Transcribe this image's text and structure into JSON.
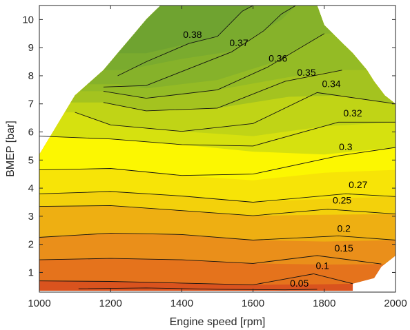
{
  "chart_data": {
    "type": "contour",
    "xlabel": "Engine speed [rpm]",
    "ylabel": "BMEP [bar]",
    "xlim": [
      1000,
      2000
    ],
    "ylim": [
      0.3,
      10.5
    ],
    "xticks": [
      1000,
      1200,
      1400,
      1600,
      1800,
      2000
    ],
    "yticks": [
      1,
      2,
      3,
      4,
      5,
      6,
      7,
      8,
      9,
      10
    ],
    "grid": false,
    "legend": "none",
    "region": [
      [
        1000,
        5.2
      ],
      [
        1000,
        0.35
      ],
      [
        1880,
        0.35
      ],
      [
        1880,
        0.6
      ],
      [
        1940,
        0.8
      ],
      [
        1960,
        1.2
      ],
      [
        2000,
        1.6
      ],
      [
        2000,
        7.0
      ],
      [
        1970,
        7.3
      ],
      [
        1940,
        7.8
      ],
      [
        1920,
        8.2
      ],
      [
        1880,
        8.8
      ],
      [
        1840,
        9.3
      ],
      [
        1800,
        9.8
      ],
      [
        1780,
        10.5
      ],
      [
        1340,
        10.5
      ],
      [
        1300,
        10.0
      ],
      [
        1260,
        9.4
      ],
      [
        1220,
        8.8
      ],
      [
        1180,
        8.2
      ],
      [
        1100,
        7.3
      ],
      [
        1000,
        5.2
      ]
    ],
    "bands": [
      {
        "color": "#d9531e",
        "lower": [
          [
            1000,
            0.35
          ],
          [
            1880,
            0.35
          ]
        ]
      },
      {
        "color": "#e5731c",
        "lower": [
          [
            1000,
            0.7
          ],
          [
            1200,
            0.68
          ],
          [
            1400,
            0.62
          ],
          [
            1600,
            0.56
          ],
          [
            1800,
            0.58
          ],
          [
            1880,
            0.6
          ]
        ]
      },
      {
        "color": "#ea8f1a",
        "lower": [
          [
            1000,
            1.45
          ],
          [
            1200,
            1.5
          ],
          [
            1400,
            1.45
          ],
          [
            1600,
            1.32
          ],
          [
            1800,
            1.28
          ],
          [
            2000,
            1.3
          ]
        ]
      },
      {
        "color": "#eeaf12",
        "lower": [
          [
            1000,
            2.25
          ],
          [
            1200,
            2.4
          ],
          [
            1400,
            2.35
          ],
          [
            1600,
            2.15
          ],
          [
            1800,
            2.1
          ],
          [
            2000,
            2.15
          ]
        ]
      },
      {
        "color": "#f3d10b",
        "lower": [
          [
            1000,
            3.35
          ],
          [
            1200,
            3.38
          ],
          [
            1400,
            3.2
          ],
          [
            1600,
            3.02
          ],
          [
            1800,
            3.05
          ],
          [
            2000,
            3.08
          ]
        ]
      },
      {
        "color": "#f7e407",
        "lower": [
          [
            1000,
            3.8
          ],
          [
            1200,
            3.88
          ],
          [
            1400,
            3.72
          ],
          [
            1600,
            3.5
          ],
          [
            1800,
            3.62
          ],
          [
            2000,
            3.7
          ]
        ]
      },
      {
        "color": "#fcf701",
        "lower": [
          [
            1000,
            4.65
          ],
          [
            1200,
            4.7
          ],
          [
            1400,
            4.45
          ],
          [
            1600,
            4.28
          ],
          [
            1800,
            4.55
          ],
          [
            2000,
            4.65
          ]
        ]
      },
      {
        "color": "#d6e10f",
        "lower": [
          [
            1000,
            5.85
          ],
          [
            1200,
            5.75
          ],
          [
            1400,
            5.55
          ],
          [
            1600,
            5.3
          ],
          [
            1800,
            5.2
          ],
          [
            2000,
            5.45
          ]
        ]
      },
      {
        "color": "#c0d416",
        "lower": [
          [
            1100,
            6.7
          ],
          [
            1200,
            6.25
          ],
          [
            1400,
            6.02
          ],
          [
            1600,
            5.85
          ],
          [
            1800,
            6.2
          ],
          [
            2000,
            6.35
          ]
        ]
      },
      {
        "color": "#a4c31f",
        "lower": [
          [
            1180,
            7.05
          ],
          [
            1300,
            6.75
          ],
          [
            1500,
            6.85
          ],
          [
            1700,
            7.25
          ],
          [
            1850,
            7.3
          ],
          [
            2000,
            7.0
          ]
        ]
      },
      {
        "color": "#94bb25",
        "lower": [
          [
            1180,
            7.45
          ],
          [
            1300,
            7.2
          ],
          [
            1500,
            7.5
          ],
          [
            1700,
            7.95
          ],
          [
            1850,
            8.2
          ]
        ]
      },
      {
        "color": "#86b22a",
        "lower": [
          [
            1220,
            7.7
          ],
          [
            1300,
            7.55
          ],
          [
            1500,
            7.85
          ],
          [
            1650,
            8.45
          ],
          [
            1800,
            9.5
          ]
        ]
      },
      {
        "color": "#7aab2e",
        "lower": [
          [
            1240,
            8.2
          ],
          [
            1400,
            8.6
          ],
          [
            1530,
            8.85
          ],
          [
            1680,
            10.0
          ],
          [
            1720,
            10.5
          ]
        ]
      },
      {
        "color": "#6fa330",
        "lower": [
          [
            1300,
            8.8
          ],
          [
            1420,
            9.15
          ],
          [
            1500,
            9.4
          ],
          [
            1570,
            10.3
          ],
          [
            1600,
            10.5
          ]
        ]
      }
    ],
    "contours": [
      {
        "label": "0.38",
        "label_at": [
          1430,
          9.35
        ],
        "line": [
          [
            1220,
            8.0
          ],
          [
            1300,
            8.5
          ],
          [
            1420,
            9.15
          ],
          [
            1500,
            9.4
          ],
          [
            1570,
            10.3
          ],
          [
            1600,
            10.5
          ]
        ]
      },
      {
        "label": "0.37",
        "label_at": [
          1560,
          9.05
        ],
        "line": [
          [
            1180,
            7.6
          ],
          [
            1300,
            7.65
          ],
          [
            1540,
            8.85
          ],
          [
            1630,
            9.6
          ],
          [
            1680,
            10.2
          ],
          [
            1720,
            10.5
          ]
        ]
      },
      {
        "label": "0.36",
        "label_at": [
          1670,
          8.5
        ],
        "line": [
          [
            1180,
            7.45
          ],
          [
            1300,
            7.2
          ],
          [
            1500,
            7.5
          ],
          [
            1640,
            8.3
          ],
          [
            1800,
            9.5
          ]
        ]
      },
      {
        "label": "0.35",
        "label_at": [
          1750,
          8.0
        ],
        "line": [
          [
            1180,
            7.05
          ],
          [
            1300,
            6.75
          ],
          [
            1500,
            6.85
          ],
          [
            1690,
            7.8
          ],
          [
            1850,
            8.2
          ]
        ]
      },
      {
        "label": "0.34",
        "label_at": [
          1820,
          7.6
        ],
        "line": [
          [
            1100,
            6.7
          ],
          [
            1200,
            6.25
          ],
          [
            1400,
            6.02
          ],
          [
            1600,
            6.3
          ],
          [
            1780,
            7.4
          ],
          [
            2000,
            7.0
          ]
        ]
      },
      {
        "label": "0.32",
        "label_at": [
          1880,
          6.55
        ],
        "line": [
          [
            1000,
            5.85
          ],
          [
            1200,
            5.75
          ],
          [
            1400,
            5.55
          ],
          [
            1600,
            5.5
          ],
          [
            1840,
            6.35
          ],
          [
            2000,
            6.35
          ]
        ]
      },
      {
        "label": "0.3",
        "label_at": [
          1860,
          5.35
        ],
        "line": [
          [
            1000,
            4.65
          ],
          [
            1200,
            4.7
          ],
          [
            1400,
            4.45
          ],
          [
            1600,
            4.5
          ],
          [
            1840,
            5.15
          ],
          [
            2000,
            5.45
          ]
        ]
      },
      {
        "label": "0.27",
        "label_at": [
          1895,
          4.0
        ],
        "line": [
          [
            1000,
            3.8
          ],
          [
            1200,
            3.88
          ],
          [
            1400,
            3.72
          ],
          [
            1600,
            3.5
          ],
          [
            1860,
            3.8
          ],
          [
            2000,
            3.7
          ]
        ]
      },
      {
        "label": "0.25",
        "label_at": [
          1850,
          3.45
        ],
        "line": [
          [
            1000,
            3.35
          ],
          [
            1200,
            3.38
          ],
          [
            1400,
            3.2
          ],
          [
            1600,
            3.02
          ],
          [
            1810,
            3.25
          ],
          [
            2000,
            3.08
          ]
        ]
      },
      {
        "label": "0.2",
        "label_at": [
          1855,
          2.45
        ],
        "line": [
          [
            1000,
            2.25
          ],
          [
            1200,
            2.4
          ],
          [
            1400,
            2.35
          ],
          [
            1600,
            2.15
          ],
          [
            1840,
            2.3
          ],
          [
            2000,
            2.15
          ]
        ]
      },
      {
        "label": "0.15",
        "label_at": [
          1855,
          1.75
        ],
        "line": [
          [
            1000,
            1.45
          ],
          [
            1200,
            1.5
          ],
          [
            1400,
            1.45
          ],
          [
            1600,
            1.32
          ],
          [
            1780,
            1.6
          ],
          [
            1960,
            1.3
          ]
        ]
      },
      {
        "label": "0.1",
        "label_at": [
          1795,
          1.12
        ],
        "line": [
          [
            1000,
            0.7
          ],
          [
            1200,
            0.68
          ],
          [
            1400,
            0.62
          ],
          [
            1600,
            0.56
          ],
          [
            1770,
            0.95
          ],
          [
            1880,
            0.6
          ]
        ]
      },
      {
        "label": "0.05",
        "label_at": [
          1730,
          0.5
        ],
        "line": [
          [
            1110,
            0.42
          ],
          [
            1300,
            0.45
          ],
          [
            1500,
            0.4
          ],
          [
            1690,
            0.38
          ],
          [
            1780,
            0.4
          ]
        ]
      }
    ]
  }
}
